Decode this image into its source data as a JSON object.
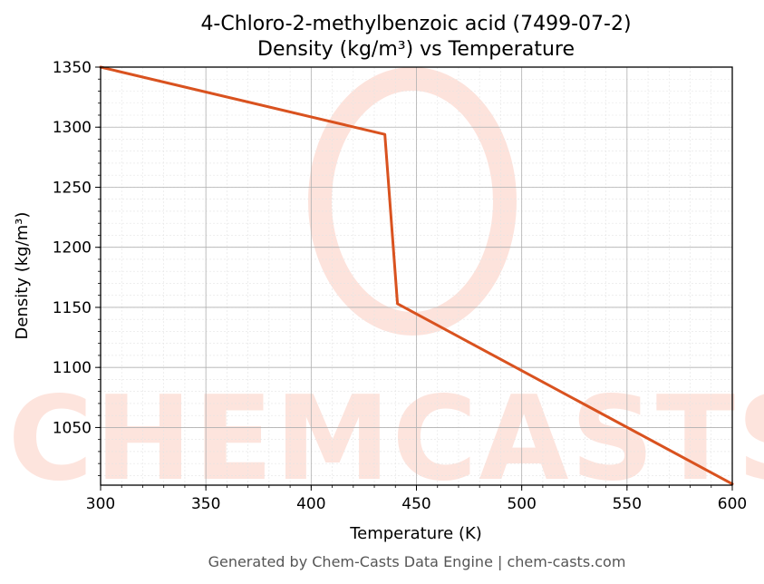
{
  "chart_data": {
    "type": "line",
    "title_line1": "4-Chloro-2-methylbenzoic acid (7499-07-2)",
    "title_line2": "Density (kg/m³) vs Temperature",
    "xlabel": "Temperature (K)",
    "ylabel": "Density (kg/m³)",
    "xlim": [
      300,
      600
    ],
    "ylim": [
      1002,
      1350
    ],
    "x_ticks": [
      300,
      350,
      400,
      450,
      500,
      550,
      600
    ],
    "y_ticks": [
      1050,
      1100,
      1150,
      1200,
      1250,
      1300,
      1350
    ],
    "grid": true,
    "series": [
      {
        "color": "#d9521f",
        "x": [
          300,
          435,
          441,
          600
        ],
        "y": [
          1350,
          1294,
          1153,
          1003
        ]
      }
    ]
  },
  "watermark": {
    "text": "CHEMCASTS",
    "color": "#fde0d8"
  },
  "footer": "Generated by Chem-Casts Data Engine | chem-casts.com"
}
